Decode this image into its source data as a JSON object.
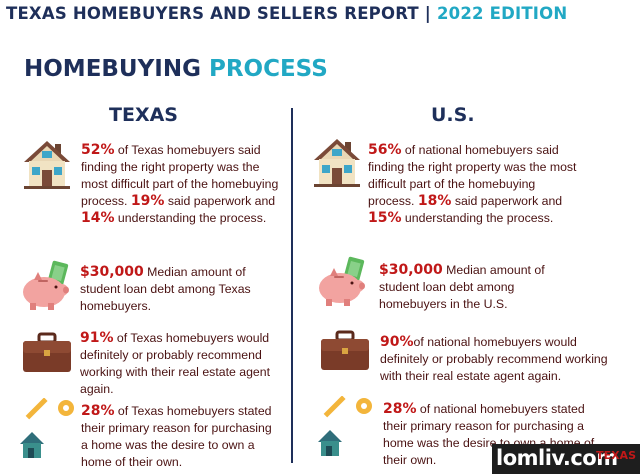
{
  "header": {
    "title": "TEXAS HOMEBUYERS AND SELLERS REPORT",
    "separator": "|",
    "edition": "2022 EDITION"
  },
  "section": {
    "title_a": "HOMEBUYING",
    "title_b": "PROCESS"
  },
  "columns": {
    "left": "TEXAS",
    "right": "U.S."
  },
  "texas": [
    {
      "icon": "house-icon",
      "parts": [
        {
          "t": "52%",
          "b": true
        },
        {
          "t": " of Texas homebuyers said finding the right property was the most difficult part of the homebuying process. "
        },
        {
          "t": "19%",
          "b": true
        },
        {
          "t": " said paperwork and "
        },
        {
          "t": "14%",
          "b": true
        },
        {
          "t": " understanding the process."
        }
      ]
    },
    {
      "icon": "piggy-bank-icon",
      "parts": [
        {
          "t": "$30,000",
          "b": true
        },
        {
          "t": " Median amount of student loan debt among Texas homebuyers."
        }
      ]
    },
    {
      "icon": "briefcase-icon",
      "parts": [
        {
          "t": "91%",
          "b": true
        },
        {
          "t": " of Texas homebuyers would definitely or probably recommend working with their real estate agent again."
        }
      ]
    },
    {
      "icon": "house-key-icon",
      "parts": [
        {
          "t": "28%",
          "b": true
        },
        {
          "t": " of Texas homebuyers stated their primary reason for purchasing a home was the desire to own a home of their own."
        }
      ]
    }
  ],
  "us": [
    {
      "icon": "house-icon",
      "parts": [
        {
          "t": "56%",
          "b": true
        },
        {
          "t": " of national homebuyers said finding the right property was the most difficult part of the homebuying process. "
        },
        {
          "t": "18%",
          "b": true
        },
        {
          "t": " said paperwork and "
        },
        {
          "t": "15%",
          "b": true
        },
        {
          "t": " understanding the process."
        }
      ]
    },
    {
      "icon": "piggy-bank-icon",
      "parts": [
        {
          "t": "$30,000",
          "b": true
        },
        {
          "t": " Median amount of student loan debt among homebuyers in the U.S."
        }
      ]
    },
    {
      "icon": "briefcase-icon",
      "parts": [
        {
          "t": "90%",
          "b": true
        },
        {
          "t": "of national homebuyers would definitely or probably recommend working with their real estate agent again."
        }
      ]
    },
    {
      "icon": "house-key-icon",
      "parts": [
        {
          "t": "28%",
          "b": true
        },
        {
          "t": " of national homebuyers stated their primary reason for purchasing a home was the desire to own a home of their own."
        }
      ]
    }
  ],
  "watermark": {
    "text": "lomliv.com",
    "logo": "TEXAS"
  },
  "colors": {
    "navy": "#1e2f5a",
    "teal": "#21a8c4",
    "red": "#c01818",
    "brown": "#4a1212"
  }
}
